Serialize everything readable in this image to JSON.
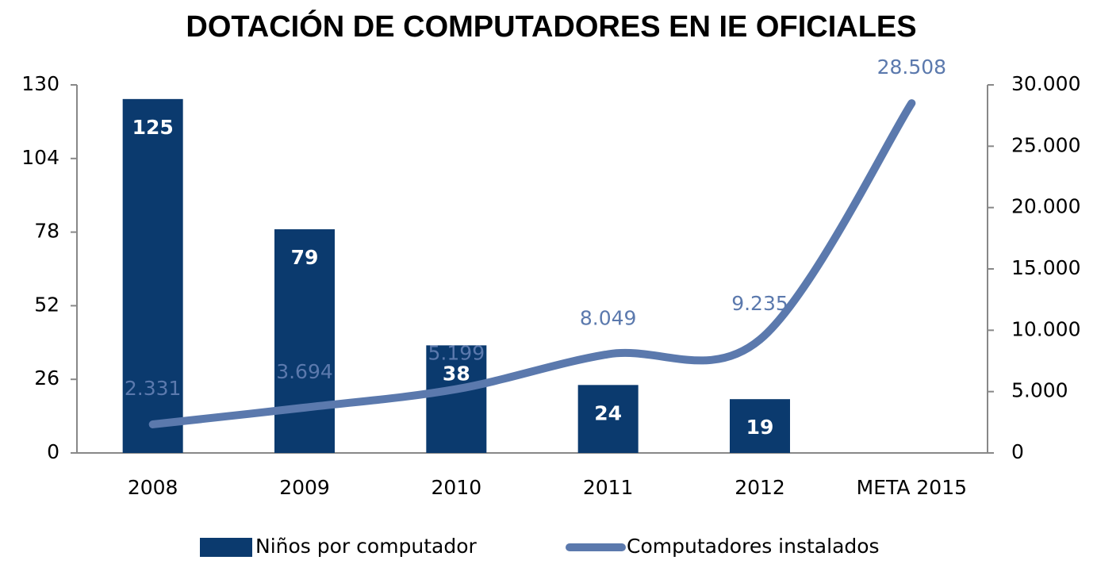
{
  "chart_data": {
    "type": "bar",
    "title": "DOTACIÓN DE COMPUTADORES EN IE OFICIALES",
    "categories": [
      "2008",
      "2009",
      "2010",
      "2011",
      "2012",
      "META 2015"
    ],
    "series": [
      {
        "name": "Niños por computador",
        "type": "bar",
        "color": "#0b3a6e",
        "values": [
          125,
          79,
          38,
          24,
          19,
          null
        ]
      },
      {
        "name": "Computadores instalados",
        "type": "line",
        "axis": "y2",
        "color": "#5b79ad",
        "values": [
          2331,
          3694,
          5199,
          8049,
          9235,
          28508
        ],
        "value_labels": [
          "2.331",
          "3.694",
          "5.199",
          "8.049",
          "9.235",
          "28.508"
        ]
      }
    ],
    "ylim": [
      0,
      130
    ],
    "yticks": [
      0,
      26,
      52,
      78,
      104,
      130
    ],
    "y2lim": [
      0,
      30000
    ],
    "y2ticks": [
      0,
      {
        "value": 5000,
        "label": "5.000"
      },
      {
        "value": 10000,
        "label": "10.000"
      },
      {
        "value": 15000,
        "label": "15.000"
      },
      {
        "value": 20000,
        "label": "20.000"
      },
      {
        "value": 25000,
        "label": "25.000"
      },
      {
        "value": 30000,
        "label": "30.000"
      }
    ],
    "legend": "bottom"
  }
}
